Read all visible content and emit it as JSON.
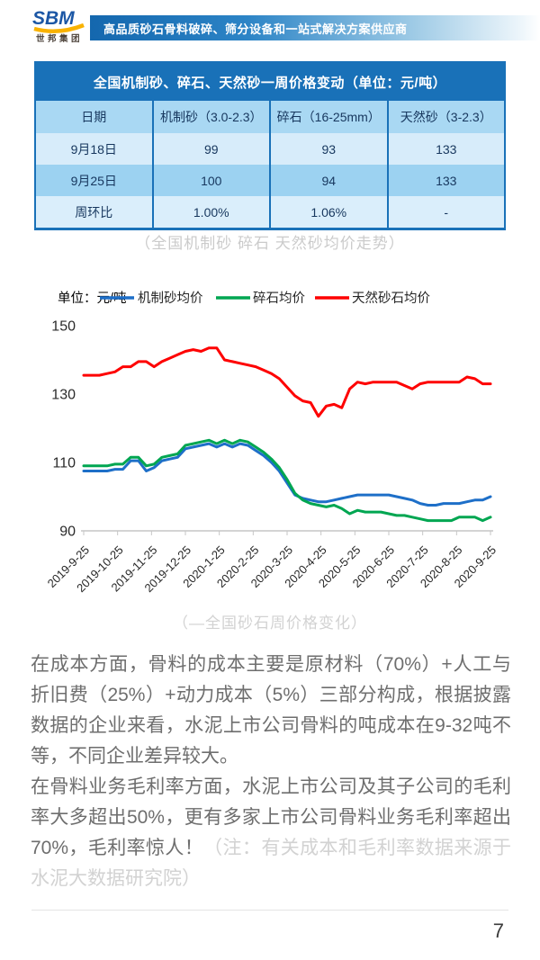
{
  "header": {
    "logo_text": "SBM",
    "logo_subtext": "世邦集团",
    "banner_text": "高品质砂石骨料破碎、筛分设备和一站式解决方案供应商"
  },
  "price_table": {
    "title": "全国机制砂、碎石、天然砂一周价格变动（单位：元/吨）",
    "columns": [
      "日期",
      "机制砂（3.0-2.3）",
      "碎石（16-25mm）",
      "天然砂（3-2.3）"
    ],
    "rows": [
      [
        "9月18日",
        "99",
        "93",
        "133"
      ],
      [
        "9月25日",
        "100",
        "94",
        "133"
      ],
      [
        "周环比",
        "1.00%",
        "1.06%",
        "-"
      ]
    ]
  },
  "table_caption": "（全国机制砂 碎石 天然砂均价走势）",
  "chart_caption": "（—全国砂石周价格变化）",
  "chart_data": {
    "type": "line",
    "unit_label": "单位：元/吨",
    "ylim": [
      90,
      150
    ],
    "yticks": [
      150,
      130,
      110,
      90
    ],
    "grid": false,
    "legend_position": "top",
    "x_tick_labels": [
      "2019-9-25",
      "2019-10-25",
      "2019-11-25",
      "2019-12-25",
      "2020-1-25",
      "2020-2-25",
      "2020-3-25",
      "2020-4-25",
      "2020-5-25",
      "2020-6-25",
      "2020-7-25",
      "2020-8-25",
      "2020-9-25"
    ],
    "series": [
      {
        "name": "机制砂均价",
        "color": "#1e6fc8",
        "values": [
          107.5,
          107.5,
          107.5,
          107.5,
          108,
          108,
          110.5,
          110.5,
          107.5,
          108.5,
          110.5,
          111,
          111.5,
          114,
          114.5,
          115,
          115.5,
          114.5,
          115.5,
          114.5,
          115.5,
          115,
          113.5,
          112,
          110,
          107.5,
          104,
          100.5,
          99.5,
          99,
          98.5,
          98.5,
          99,
          99.5,
          100,
          100.5,
          100.5,
          100.5,
          100.5,
          100.5,
          100,
          99.5,
          99,
          98,
          97.5,
          97.5,
          98,
          98,
          98,
          98.5,
          99,
          99,
          100
        ]
      },
      {
        "name": "碎石均价",
        "color": "#00a651",
        "values": [
          109,
          109,
          109,
          109,
          109.5,
          109.5,
          111.5,
          111.5,
          109,
          109.5,
          111.5,
          112,
          112.5,
          115,
          115.5,
          116,
          116.5,
          115.5,
          116.5,
          115.5,
          116.5,
          116,
          114.5,
          113,
          111,
          108.5,
          105,
          101,
          99,
          98,
          97.5,
          97,
          97.5,
          96.5,
          95,
          96,
          95.5,
          95.5,
          95.5,
          95,
          94.5,
          94.5,
          94,
          93.5,
          93,
          93,
          93,
          93,
          94,
          94,
          94,
          93,
          94
        ]
      },
      {
        "name": "天然砂石均价",
        "color": "#fe0000",
        "values": [
          135.5,
          135.5,
          135.5,
          136,
          136.5,
          138,
          138,
          139.5,
          139.5,
          138,
          139.5,
          140.5,
          141.5,
          142.5,
          143,
          142.5,
          143.5,
          143.5,
          140,
          139.5,
          139,
          138.5,
          138,
          137,
          136,
          134.5,
          132,
          129.5,
          128,
          127.5,
          123.5,
          126.5,
          127,
          126,
          131.5,
          133.5,
          133,
          133.5,
          133.5,
          133.5,
          133.5,
          132.5,
          131.5,
          133,
          133.5,
          133.5,
          133.5,
          133.5,
          133.5,
          135,
          134.5,
          133,
          133
        ]
      }
    ]
  },
  "body": {
    "paragraph1": "在成本方面，骨料的成本主要是原材料（70%）+人工与折旧费（25%）+动力成本（5%）三部分构成，根据披露数据的企业来看，水泥上市公司骨料的吨成本在9-32吨不等，不同企业差异较大。",
    "paragraph2": "在骨料业务毛利率方面，水泥上市公司及其子公司的毛利率大多超出50%，更有多家上市公司骨料业务毛利率超出70%，毛利率惊人！",
    "paragraph2_note": "（注：有关成本和毛利率数据来源于水泥大数据研究院）"
  },
  "footer": {
    "page_number": "7"
  },
  "colors": {
    "banner_blue": "#1467ae",
    "table_title_bg": "#1971b8",
    "table_header_row_bg": "#a9d8f3",
    "table_light_row_bg": "#d7ecfa",
    "table_dark_row_bg": "#9cd2f1",
    "logo_blue": "#1c57a5",
    "logo_yellow": "#f9b200"
  }
}
